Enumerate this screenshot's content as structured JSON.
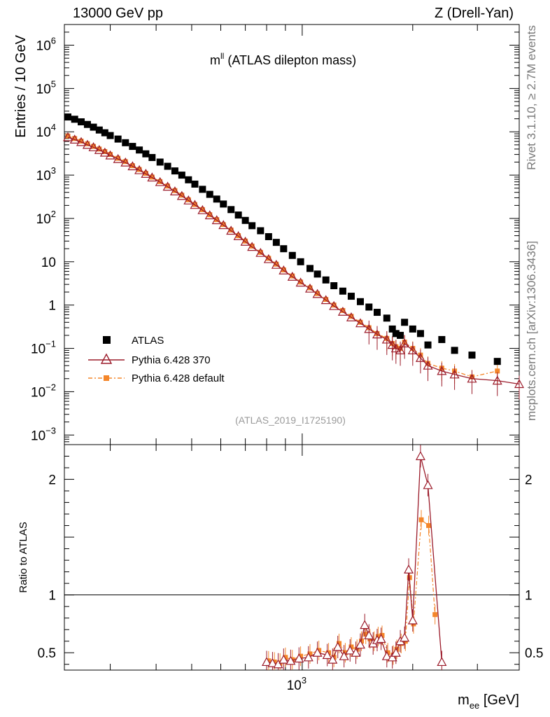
{
  "header": {
    "left": "13000 GeV pp",
    "right": "Z (Drell-Yan)"
  },
  "side": {
    "rivet": "Rivet 3.1.10, ≥ 2.7M events",
    "mcplots": "mcplots.cern.ch [arXiv:1306.3436]"
  },
  "colors": {
    "atlas": "#000000",
    "p370": "#9b1b2a",
    "pdef": "#f4862a"
  },
  "chart_data": {
    "type": "scatter",
    "title_main": "m",
    "title_sup": "ll",
    "title_rest": " (ATLAS dilepton mass)",
    "ref": "(ATLAS_2019_I1725190)",
    "xlabel_main": "m",
    "xlabel_sub": "ee",
    "xlabel_rest": " [GeV]",
    "ylabel": "Entries / 10 GeV",
    "ratio_ylabel": "Ratio to ATLAS",
    "xlim": [
      225,
      3900
    ],
    "ylim": [
      0.0006,
      3000000
    ],
    "ratio_ylim": [
      0.35,
      2.3
    ],
    "xtick_major": {
      "value": 1000,
      "label": "10",
      "exp": "3"
    },
    "yticks": [
      {
        "v": 1000000,
        "base": "10",
        "exp": "6"
      },
      {
        "v": 100000,
        "base": "10",
        "exp": "5"
      },
      {
        "v": 10000,
        "base": "10",
        "exp": "4"
      },
      {
        "v": 1000,
        "base": "10",
        "exp": "3"
      },
      {
        "v": 100,
        "base": "10",
        "exp": "2"
      },
      {
        "v": 10,
        "base": "10",
        "exp": ""
      },
      {
        "v": 1,
        "base": "1",
        "exp": ""
      },
      {
        "v": 0.1,
        "base": "10",
        "exp": "−1"
      },
      {
        "v": 0.01,
        "base": "10",
        "exp": "−2"
      },
      {
        "v": 0.001,
        "base": "10",
        "exp": "−3"
      }
    ],
    "ratio_ticks": [
      {
        "v": 2,
        "label": "2"
      },
      {
        "v": 1,
        "label": "1"
      },
      {
        "v": 0.5,
        "label": "0.5"
      }
    ],
    "legend": [
      "ATLAS",
      "Pythia 6.428 370",
      "Pythia 6.428 default"
    ],
    "series": [
      {
        "name": "ATLAS",
        "x": [
          230,
          240,
          250,
          260,
          270,
          280,
          290,
          300,
          315,
          330,
          345,
          360,
          375,
          390,
          410,
          430,
          450,
          470,
          490,
          510,
          535,
          560,
          585,
          610,
          640,
          670,
          700,
          730,
          770,
          810,
          850,
          890,
          940,
          990,
          1050,
          1100,
          1160,
          1220,
          1290,
          1360,
          1440,
          1520,
          1600,
          1700,
          1760,
          1800,
          1850,
          1900,
          2000,
          2100,
          2200,
          2400,
          2600,
          2900,
          3400
        ],
        "y": [
          22000,
          19500,
          17000,
          14800,
          12800,
          11000,
          9500,
          8200,
          6800,
          5600,
          4600,
          3800,
          3100,
          2550,
          2000,
          1600,
          1250,
          1000,
          780,
          620,
          470,
          360,
          280,
          215,
          160,
          120,
          90,
          68,
          52,
          38,
          28,
          20,
          14,
          10,
          7,
          5.2,
          3.8,
          2.8,
          2.1,
          1.6,
          1.2,
          0.9,
          0.68,
          0.5,
          0.28,
          0.22,
          0.2,
          0.4,
          0.28,
          0.22,
          0.12,
          0.16,
          0.09,
          0.07,
          0.05
        ]
      },
      {
        "name": "Pythia 6.428 370",
        "x": [
          230,
          240,
          250,
          260,
          270,
          280,
          290,
          300,
          315,
          330,
          345,
          360,
          375,
          390,
          410,
          430,
          450,
          470,
          490,
          510,
          535,
          560,
          585,
          610,
          640,
          670,
          700,
          730,
          770,
          810,
          850,
          890,
          940,
          990,
          1050,
          1100,
          1160,
          1220,
          1290,
          1360,
          1440,
          1520,
          1600,
          1700,
          1760,
          1800,
          1850,
          1900,
          2000,
          2100,
          2200,
          2400,
          2600,
          2900,
          3400,
          3900
        ],
        "y": [
          7500,
          6600,
          5800,
          5000,
          4400,
          3800,
          3300,
          2850,
          2350,
          1950,
          1600,
          1300,
          1070,
          880,
          690,
          540,
          420,
          330,
          260,
          205,
          155,
          118,
          91,
          70,
          52,
          39,
          29,
          22,
          16,
          11.5,
          8.5,
          6.3,
          4.5,
          3.3,
          2.4,
          1.8,
          1.3,
          0.95,
          0.7,
          0.52,
          0.38,
          0.28,
          0.21,
          0.16,
          0.12,
          0.1,
          0.09,
          0.13,
          0.09,
          0.06,
          0.04,
          0.03,
          0.025,
          0.02,
          0.018,
          0.015
        ]
      },
      {
        "name": "Pythia 6.428 default",
        "x": [
          230,
          240,
          250,
          260,
          270,
          280,
          290,
          300,
          315,
          330,
          345,
          360,
          375,
          390,
          410,
          430,
          450,
          470,
          490,
          510,
          535,
          560,
          585,
          610,
          640,
          670,
          700,
          730,
          770,
          810,
          850,
          890,
          940,
          990,
          1050,
          1100,
          1160,
          1220,
          1290,
          1360,
          1440,
          1520,
          1600,
          1700,
          1760,
          1800,
          1850,
          1900,
          2000,
          2100,
          2200,
          2400,
          2600,
          2900,
          3400
        ],
        "y": [
          8000,
          7000,
          6100,
          5300,
          4600,
          4000,
          3500,
          3000,
          2450,
          2050,
          1650,
          1350,
          1100,
          900,
          710,
          560,
          440,
          345,
          270,
          210,
          160,
          122,
          94,
          72,
          54,
          40,
          30,
          23,
          16.5,
          12,
          8.8,
          6.5,
          4.7,
          3.4,
          2.5,
          1.85,
          1.35,
          1.0,
          0.75,
          0.55,
          0.4,
          0.3,
          0.22,
          0.17,
          0.13,
          0.11,
          0.1,
          0.14,
          0.1,
          0.07,
          0.045,
          0.035,
          0.03,
          0.022,
          0.03
        ]
      }
    ],
    "ratio_series": [
      {
        "name": "Pythia 6.428 370",
        "x": [
          800,
          830,
          860,
          890,
          930,
          980,
          1040,
          1100,
          1170,
          1210,
          1250,
          1300,
          1350,
          1400,
          1440,
          1480,
          1520,
          1560,
          1600,
          1640,
          1700,
          1760,
          1800,
          1850,
          1900,
          1950,
          2000,
          2100,
          2200,
          2400
        ],
        "y": [
          0.42,
          0.41,
          0.4,
          0.44,
          0.43,
          0.45,
          0.46,
          0.5,
          0.48,
          0.44,
          0.55,
          0.47,
          0.52,
          0.5,
          0.57,
          0.74,
          0.65,
          0.58,
          0.61,
          0.62,
          0.47,
          0.46,
          0.5,
          0.6,
          0.63,
          1.22,
          0.78,
          2.2,
          1.95,
          0.42
        ]
      },
      {
        "name": "Pythia 6.428 default",
        "x": [
          810,
          840,
          870,
          900,
          940,
          990,
          1050,
          1110,
          1180,
          1220,
          1260,
          1310,
          1360,
          1410,
          1450,
          1490,
          1530,
          1570,
          1610,
          1650,
          1710,
          1770,
          1810,
          1860,
          1910,
          1960,
          2010,
          2110,
          2210,
          2300
        ],
        "y": [
          0.43,
          0.42,
          0.41,
          0.46,
          0.44,
          0.47,
          0.49,
          0.52,
          0.5,
          0.46,
          0.58,
          0.5,
          0.55,
          0.53,
          0.6,
          0.66,
          0.62,
          0.6,
          0.64,
          0.65,
          0.5,
          0.48,
          0.53,
          0.58,
          0.6,
          1.15,
          0.75,
          1.65,
          1.6,
          0.83
        ]
      }
    ]
  }
}
